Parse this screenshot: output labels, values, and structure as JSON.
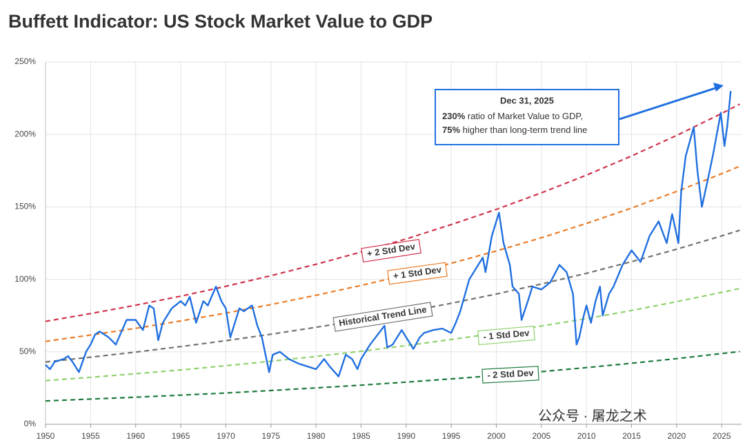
{
  "chart_data": {
    "type": "line",
    "title": "Buffett Indicator: US Stock Market Value to GDP",
    "xlim": [
      1950,
      2027.2
    ],
    "ylim": [
      0,
      250
    ],
    "xticks": [
      1950,
      1955,
      1960,
      1965,
      1970,
      1975,
      1980,
      1985,
      1990,
      1995,
      2000,
      2005,
      2010,
      2015,
      2020,
      2025
    ],
    "yticks": [
      {
        "value": 0,
        "label": "0%"
      },
      {
        "value": 50,
        "label": "50%"
      },
      {
        "value": 100,
        "label": "100%"
      },
      {
        "value": 150,
        "label": "150%"
      },
      {
        "value": 200,
        "label": "200%"
      },
      {
        "value": 250,
        "label": "250%"
      }
    ],
    "grid": true,
    "series": [
      {
        "color": "#1f6fe0",
        "dashed": false,
        "x": [
          1950,
          1950.5,
          1951,
          1952,
          1952.5,
          1953,
          1953.7,
          1954.5,
          1955,
          1955.5,
          1956,
          1957,
          1957.8,
          1958.5,
          1959,
          1960,
          1960.8,
          1961.5,
          1962,
          1962.5,
          1963,
          1963.5,
          1964,
          1965,
          1965.5,
          1966,
          1966.7,
          1967.5,
          1968,
          1968.9,
          1969.5,
          1970,
          1970.5,
          1971,
          1971.5,
          1972,
          1972.9,
          1973.5,
          1974,
          1974.8,
          1975.2,
          1976,
          1977,
          1978,
          1979,
          1980,
          1980.9,
          1981.5,
          1982.5,
          1983.3,
          1984,
          1984.6,
          1985,
          1986,
          1987.6,
          1987.9,
          1988.5,
          1989.5,
          1990,
          1990.8,
          1991.5,
          1992,
          1993,
          1994,
          1995,
          1995.5,
          1996,
          1997,
          1997.8,
          1998.5,
          1998.8,
          1999.5,
          2000,
          2000.3,
          2000.8,
          2001.5,
          2001.8,
          2002.5,
          2002.8,
          2003.5,
          2004,
          2005,
          2006,
          2007,
          2007.8,
          2008.5,
          2008.9,
          2009.2,
          2009.7,
          2010,
          2010.5,
          2011,
          2011.5,
          2011.8,
          2012.5,
          2013,
          2014,
          2015,
          2016,
          2017,
          2018,
          2018.9,
          2019.5,
          2020.2,
          2020.5,
          2021,
          2021.9,
          2022.3,
          2022.8,
          2023.5,
          2024,
          2024.9,
          2025.3,
          2025.6,
          2026
        ],
        "values": [
          41,
          38,
          43,
          45,
          47,
          43,
          36,
          50,
          55,
          62,
          64,
          60,
          55,
          65,
          72,
          72,
          65,
          82,
          80,
          58,
          70,
          75,
          80,
          85,
          82,
          88,
          70,
          85,
          82,
          95,
          85,
          80,
          60,
          70,
          80,
          78,
          82,
          68,
          60,
          36,
          48,
          50,
          45,
          42,
          40,
          38,
          45,
          40,
          33,
          48,
          45,
          38,
          45,
          55,
          68,
          53,
          55,
          65,
          60,
          52,
          60,
          63,
          65,
          66,
          63,
          70,
          78,
          100,
          108,
          115,
          105,
          130,
          140,
          146,
          125,
          110,
          95,
          90,
          72,
          85,
          95,
          93,
          98,
          110,
          105,
          90,
          55,
          60,
          75,
          82,
          70,
          85,
          95,
          75,
          90,
          95,
          110,
          120,
          112,
          130,
          140,
          125,
          145,
          125,
          160,
          185,
          205,
          175,
          150,
          170,
          185,
          215,
          192,
          205,
          230
        ]
      },
      {
        "name": "+ 2 Std Dev",
        "color": "#d0314a",
        "dashed": true,
        "x": [
          1950,
          1955,
          1960,
          1965,
          1970,
          1975,
          1980,
          1985,
          1990,
          1995,
          2000,
          2005,
          2010,
          2015,
          2020,
          2025,
          2027
        ],
        "values": [
          71.0,
          76.4,
          82.2,
          88.4,
          95.2,
          102.5,
          110.4,
          118.8,
          127.9,
          137.8,
          148.3,
          159.7,
          171.9,
          185.1,
          199.3,
          214.5,
          220.9
        ]
      },
      {
        "name": "+ 1 Std Dev",
        "color": "#ec7a23",
        "dashed": true,
        "x": [
          1950,
          1955,
          1960,
          1965,
          1970,
          1975,
          1980,
          1985,
          1990,
          1995,
          2000,
          2005,
          2010,
          2015,
          2020,
          2025,
          2027
        ],
        "values": [
          57.2,
          61.6,
          66.2,
          71.3,
          76.7,
          82.6,
          89.0,
          95.8,
          103.1,
          111.1,
          119.6,
          128.7,
          138.6,
          149.2,
          160.7,
          172.9,
          178.1
        ]
      },
      {
        "name": "Historical Trend Line",
        "color": "#707070",
        "dashed": true,
        "x": [
          1950,
          1955,
          1960,
          1965,
          1970,
          1975,
          1980,
          1985,
          1990,
          1995,
          2000,
          2005,
          2010,
          2015,
          2020,
          2025,
          2027
        ],
        "values": [
          43.0,
          46.3,
          49.8,
          53.6,
          57.7,
          62.1,
          66.9,
          72.0,
          77.5,
          83.5,
          89.9,
          96.8,
          104.2,
          112.2,
          120.8,
          130.0,
          133.9
        ]
      },
      {
        "name": "- 1 Std Dev",
        "color": "#8fd16b",
        "dashed": true,
        "x": [
          1950,
          1955,
          1960,
          1965,
          1970,
          1975,
          1980,
          1985,
          1990,
          1995,
          2000,
          2005,
          2010,
          2015,
          2020,
          2025,
          2027
        ],
        "values": [
          30.1,
          32.4,
          34.9,
          37.5,
          40.4,
          43.5,
          46.8,
          50.4,
          54.3,
          58.5,
          62.9,
          67.8,
          72.9,
          78.5,
          84.6,
          91.0,
          93.7
        ]
      },
      {
        "name": "- 2 Std Dev",
        "color": "#1a7a3a",
        "dashed": true,
        "x": [
          1950,
          1955,
          1960,
          1965,
          1970,
          1975,
          1980,
          1985,
          1990,
          1995,
          2000,
          2005,
          2010,
          2015,
          2020,
          2025,
          2027
        ],
        "values": [
          16.1,
          17.4,
          18.7,
          20.1,
          21.6,
          23.3,
          25.1,
          27.0,
          29.1,
          31.3,
          33.7,
          36.3,
          39.1,
          42.1,
          45.3,
          48.8,
          50.2
        ]
      }
    ],
    "annotation": {
      "title": "Dec 31, 2025",
      "lines": [
        {
          "bold": "230%",
          "text": " ratio of Market Value to GDP,"
        },
        {
          "bold": "75%",
          "text": " higher than long-term trend line"
        }
      ]
    },
    "watermark": "公众号 · 屠龙之术"
  }
}
